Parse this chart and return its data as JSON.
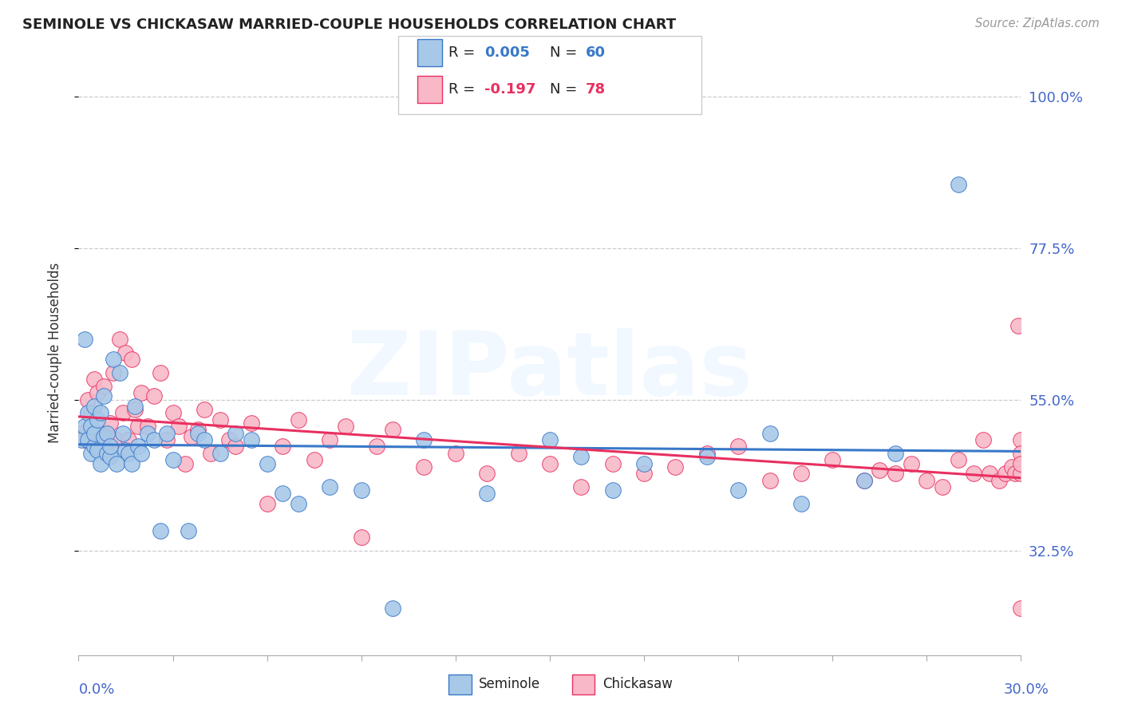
{
  "title": "SEMINOLE VS CHICKASAW MARRIED-COUPLE HOUSEHOLDS CORRELATION CHART",
  "source": "Source: ZipAtlas.com",
  "ylabel": "Married-couple Households",
  "legend_seminole": "Seminole",
  "legend_chickasaw": "Chickasaw",
  "seminole_color": "#a8c8e8",
  "chickasaw_color": "#f8b8c8",
  "seminole_line_color": "#3878c8",
  "chickasaw_line_color": "#e83060",
  "background_color": "#ffffff",
  "grid_color": "#cccccc",
  "title_color": "#222222",
  "right_label_color": "#4466cc",
  "xmin": 0.0,
  "xmax": 0.3,
  "ymin": 0.17,
  "ymax": 1.07,
  "ytick_vals": [
    1.0,
    0.775,
    0.55,
    0.325
  ],
  "ytick_labels": [
    "100.0%",
    "77.5%",
    "55.0%",
    "32.5%"
  ],
  "seminole_x": [
    0.001,
    0.002,
    0.002,
    0.003,
    0.003,
    0.004,
    0.004,
    0.005,
    0.005,
    0.005,
    0.006,
    0.006,
    0.007,
    0.007,
    0.008,
    0.008,
    0.009,
    0.009,
    0.01,
    0.01,
    0.011,
    0.012,
    0.013,
    0.014,
    0.015,
    0.016,
    0.017,
    0.018,
    0.019,
    0.02,
    0.022,
    0.024,
    0.026,
    0.028,
    0.03,
    0.035,
    0.038,
    0.04,
    0.045,
    0.05,
    0.055,
    0.06,
    0.065,
    0.07,
    0.08,
    0.09,
    0.1,
    0.11,
    0.13,
    0.15,
    0.16,
    0.17,
    0.18,
    0.2,
    0.21,
    0.22,
    0.23,
    0.25,
    0.26,
    0.28
  ],
  "seminole_y": [
    0.49,
    0.51,
    0.64,
    0.49,
    0.53,
    0.47,
    0.51,
    0.48,
    0.5,
    0.54,
    0.475,
    0.52,
    0.455,
    0.53,
    0.495,
    0.555,
    0.5,
    0.47,
    0.465,
    0.48,
    0.61,
    0.455,
    0.59,
    0.5,
    0.475,
    0.47,
    0.455,
    0.54,
    0.48,
    0.47,
    0.5,
    0.49,
    0.355,
    0.5,
    0.46,
    0.355,
    0.5,
    0.49,
    0.47,
    0.5,
    0.49,
    0.455,
    0.41,
    0.395,
    0.42,
    0.415,
    0.24,
    0.49,
    0.41,
    0.49,
    0.465,
    0.415,
    0.455,
    0.465,
    0.415,
    0.5,
    0.395,
    0.43,
    0.47,
    0.87
  ],
  "chickasaw_x": [
    0.001,
    0.002,
    0.003,
    0.004,
    0.005,
    0.006,
    0.007,
    0.008,
    0.009,
    0.01,
    0.011,
    0.012,
    0.013,
    0.014,
    0.015,
    0.016,
    0.017,
    0.018,
    0.019,
    0.02,
    0.022,
    0.024,
    0.026,
    0.028,
    0.03,
    0.032,
    0.034,
    0.036,
    0.038,
    0.04,
    0.042,
    0.045,
    0.048,
    0.05,
    0.055,
    0.06,
    0.065,
    0.07,
    0.075,
    0.08,
    0.085,
    0.09,
    0.095,
    0.1,
    0.11,
    0.12,
    0.13,
    0.14,
    0.15,
    0.16,
    0.17,
    0.18,
    0.19,
    0.2,
    0.21,
    0.22,
    0.23,
    0.24,
    0.25,
    0.255,
    0.26,
    0.265,
    0.27,
    0.275,
    0.28,
    0.285,
    0.288,
    0.29,
    0.293,
    0.295,
    0.297,
    0.298,
    0.299,
    0.3,
    0.3,
    0.3,
    0.3,
    0.3
  ],
  "chickasaw_y": [
    0.5,
    0.49,
    0.55,
    0.53,
    0.58,
    0.56,
    0.49,
    0.57,
    0.5,
    0.515,
    0.59,
    0.49,
    0.64,
    0.53,
    0.62,
    0.49,
    0.61,
    0.535,
    0.51,
    0.56,
    0.51,
    0.555,
    0.59,
    0.49,
    0.53,
    0.51,
    0.455,
    0.495,
    0.505,
    0.535,
    0.47,
    0.52,
    0.49,
    0.48,
    0.515,
    0.395,
    0.48,
    0.52,
    0.46,
    0.49,
    0.51,
    0.345,
    0.48,
    0.505,
    0.45,
    0.47,
    0.44,
    0.47,
    0.455,
    0.42,
    0.455,
    0.44,
    0.45,
    0.47,
    0.48,
    0.43,
    0.44,
    0.46,
    0.43,
    0.445,
    0.44,
    0.455,
    0.43,
    0.42,
    0.46,
    0.44,
    0.49,
    0.44,
    0.43,
    0.44,
    0.45,
    0.44,
    0.66,
    0.49,
    0.47,
    0.44,
    0.455,
    0.24
  ]
}
